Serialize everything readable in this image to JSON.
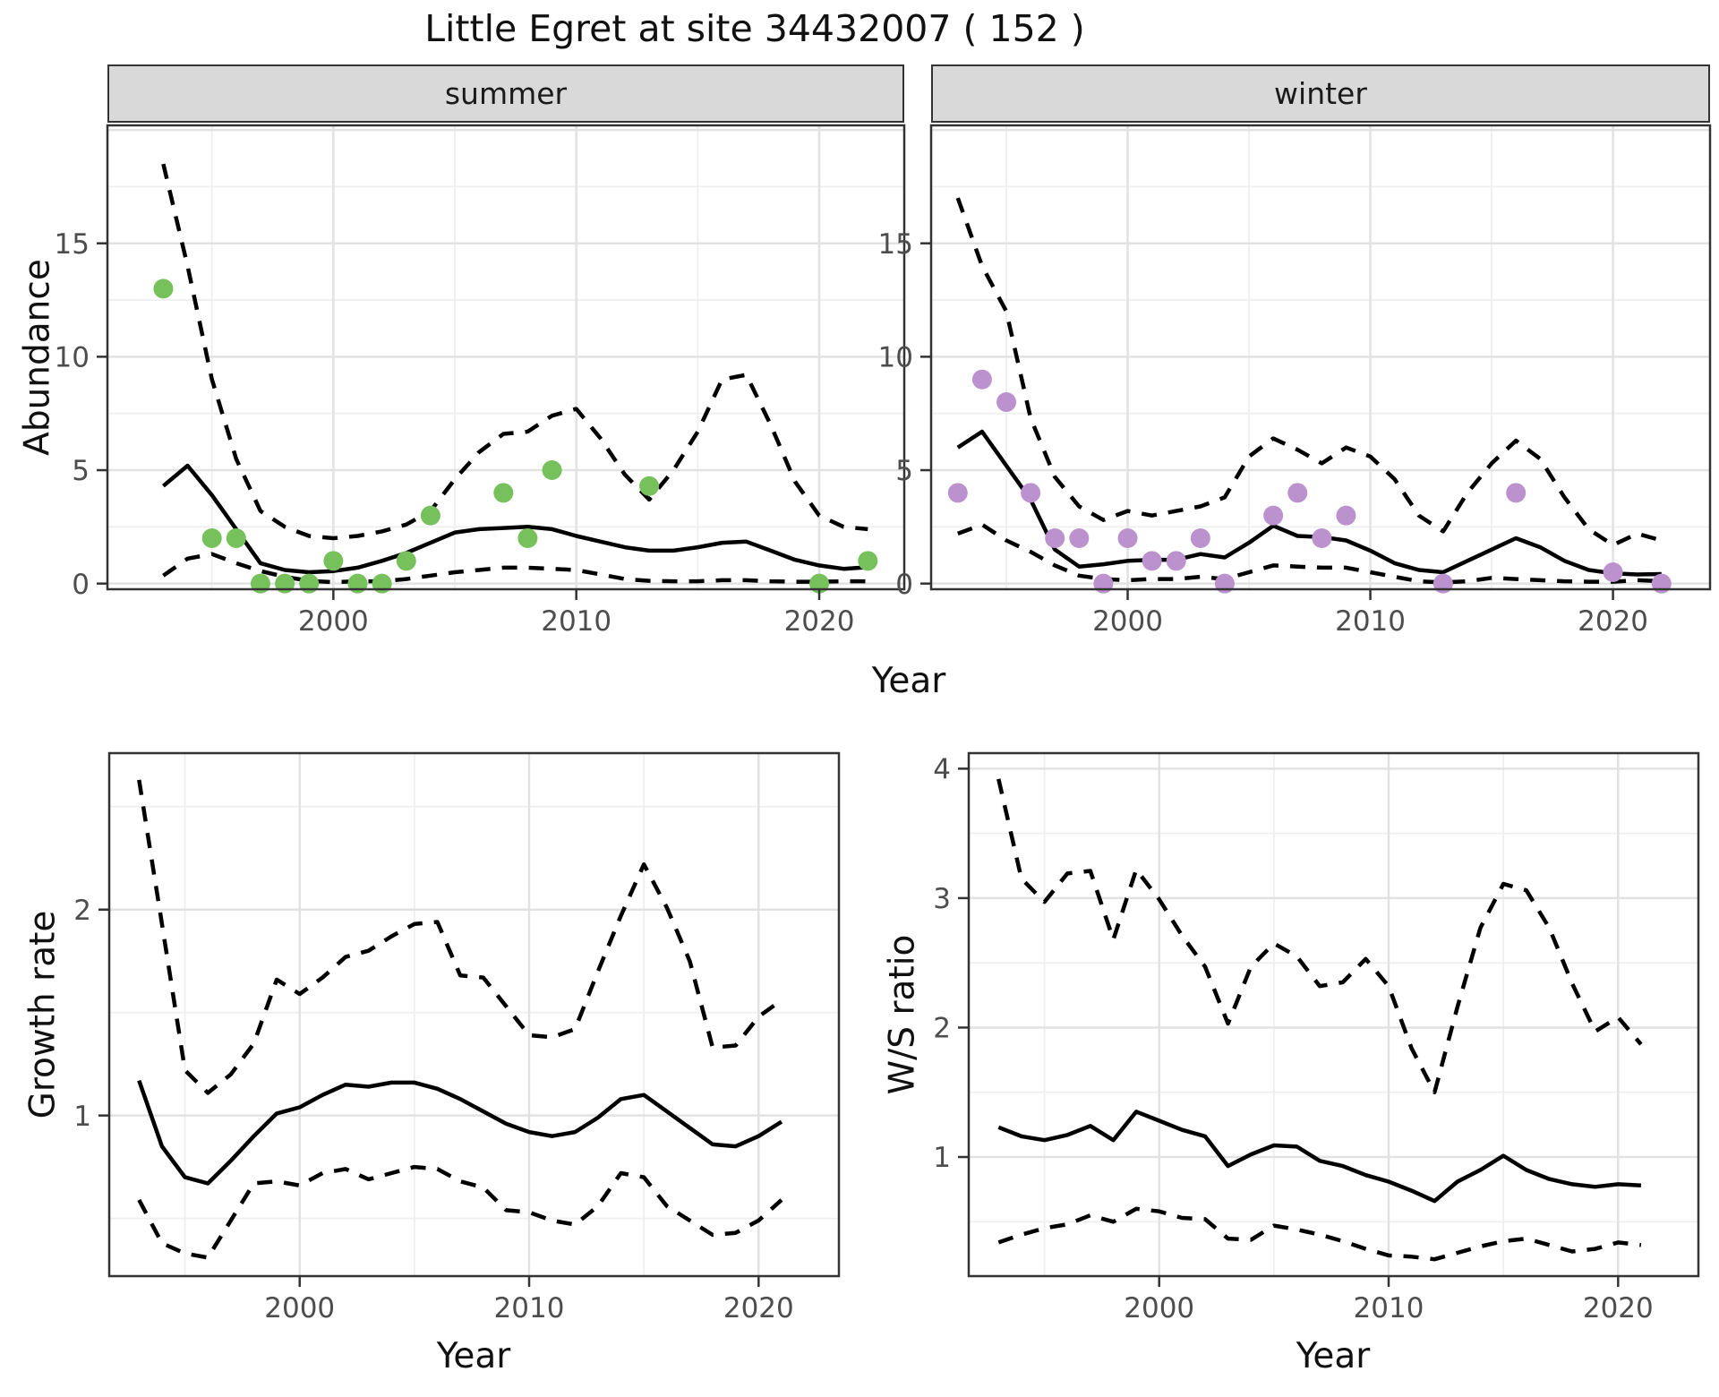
{
  "title": "Little Egret at site 34432007 ( 152 )",
  "axis_titles": {
    "abundance": "Abundance",
    "year_top": "Year",
    "growth": "Growth rate",
    "year_growth": "Year",
    "ws": "W/S ratio",
    "year_ws": "Year"
  },
  "facets": {
    "summer": "summer",
    "winter": "winter"
  },
  "colors": {
    "summer_points": "#77C15C",
    "winter_points": "#BB92CD",
    "line": "#000000",
    "strip_bg": "#D9D9D9",
    "panel_border": "#333333",
    "grid_major": "#E2E2E2",
    "grid_minor": "#EFEFEF",
    "tick_text": "#4D4D4D",
    "tick_mark": "#333333"
  },
  "chart_data": [
    {
      "id": "summer",
      "type": "line",
      "facet_label": "summer",
      "ylabel": "Abundance",
      "xlabel": "Year",
      "xlim": [
        1990.7,
        2023.5
      ],
      "ylim": [
        -0.25,
        20.2
      ],
      "x_ticks": [
        2000,
        2010,
        2020
      ],
      "x_minor": [
        1995,
        2005,
        2015
      ],
      "y_ticks": [
        0,
        5,
        10,
        15
      ],
      "y_extra_gridlines": [
        20
      ],
      "y_minor": [
        2.5,
        7.5,
        12.5,
        17.5
      ],
      "grid": true,
      "legend": "none",
      "years": [
        1993,
        1994,
        1995,
        1996,
        1997,
        1998,
        1999,
        2000,
        2001,
        2002,
        2003,
        2004,
        2005,
        2006,
        2007,
        2008,
        2009,
        2010,
        2011,
        2012,
        2013,
        2014,
        2015,
        2016,
        2017,
        2018,
        2019,
        2020,
        2021,
        2022
      ],
      "series": [
        {
          "name": "mean",
          "style": "solid",
          "values": [
            4.3,
            5.2,
            3.9,
            2.4,
            0.9,
            0.6,
            0.5,
            0.55,
            0.7,
            1.0,
            1.35,
            1.8,
            2.25,
            2.4,
            2.45,
            2.5,
            2.4,
            2.1,
            1.85,
            1.6,
            1.45,
            1.45,
            1.6,
            1.8,
            1.85,
            1.45,
            1.05,
            0.8,
            0.65,
            0.72
          ]
        },
        {
          "name": "upper_ci",
          "style": "dashed",
          "values": [
            18.5,
            14.0,
            9.0,
            5.5,
            3.2,
            2.5,
            2.1,
            2.0,
            2.1,
            2.3,
            2.6,
            3.2,
            4.6,
            5.8,
            6.6,
            6.7,
            7.4,
            7.7,
            6.4,
            4.8,
            3.7,
            5.0,
            6.7,
            9.0,
            9.2,
            7.0,
            4.5,
            3.0,
            2.5,
            2.4
          ]
        },
        {
          "name": "lower_ci",
          "style": "dashed",
          "values": [
            0.35,
            1.1,
            1.3,
            0.9,
            0.55,
            0.3,
            0.12,
            0.06,
            0.1,
            0.1,
            0.2,
            0.35,
            0.5,
            0.6,
            0.7,
            0.7,
            0.65,
            0.6,
            0.4,
            0.2,
            0.12,
            0.1,
            0.1,
            0.15,
            0.15,
            0.1,
            0.08,
            0.08,
            0.1,
            0.1
          ]
        }
      ],
      "points": {
        "name": "observed-summer",
        "color": "#77C15C",
        "data": [
          [
            1993,
            13
          ],
          [
            1995,
            2
          ],
          [
            1996,
            2
          ],
          [
            1997,
            0
          ],
          [
            1998,
            0
          ],
          [
            1999,
            0
          ],
          [
            2000,
            1
          ],
          [
            2001,
            0
          ],
          [
            2002,
            0
          ],
          [
            2003,
            1
          ],
          [
            2004,
            3
          ],
          [
            2007,
            4
          ],
          [
            2008,
            2
          ],
          [
            2009,
            5
          ],
          [
            2013,
            4.3
          ],
          [
            2020,
            0
          ],
          [
            2022,
            1
          ]
        ]
      }
    },
    {
      "id": "winter",
      "type": "line",
      "facet_label": "winter",
      "ylabel": "Abundance",
      "xlabel": "Year",
      "xlim": [
        1991.9,
        2024.0
      ],
      "ylim": [
        -0.25,
        20.2
      ],
      "x_ticks": [
        2000,
        2010,
        2020
      ],
      "x_minor": [
        1995,
        2005,
        2015
      ],
      "y_ticks": [
        0,
        5,
        10,
        15
      ],
      "y_extra_gridlines": [
        20
      ],
      "y_minor": [
        2.5,
        7.5,
        12.5,
        17.5
      ],
      "grid": true,
      "legend": "none",
      "years": [
        1993,
        1994,
        1995,
        1996,
        1997,
        1998,
        1999,
        2000,
        2001,
        2002,
        2003,
        2004,
        2005,
        2006,
        2007,
        2008,
        2009,
        2010,
        2011,
        2012,
        2013,
        2014,
        2015,
        2016,
        2017,
        2018,
        2019,
        2020,
        2021,
        2022
      ],
      "series": [
        {
          "name": "mean",
          "style": "solid",
          "values": [
            6.0,
            6.7,
            5.2,
            3.7,
            1.5,
            0.75,
            0.85,
            1.0,
            1.05,
            1.05,
            1.3,
            1.15,
            1.8,
            2.55,
            2.1,
            2.05,
            1.9,
            1.45,
            0.9,
            0.6,
            0.5,
            1.0,
            1.5,
            2.0,
            1.6,
            1.0,
            0.6,
            0.45,
            0.4,
            0.42
          ]
        },
        {
          "name": "upper_ci",
          "style": "dashed",
          "values": [
            17.0,
            14.0,
            12.0,
            7.3,
            4.7,
            3.4,
            2.8,
            3.2,
            3.0,
            3.2,
            3.4,
            3.8,
            5.6,
            6.4,
            5.9,
            5.3,
            6.0,
            5.6,
            4.6,
            3.0,
            2.3,
            4.0,
            5.3,
            6.3,
            5.5,
            3.8,
            2.4,
            1.7,
            2.2,
            1.9
          ]
        },
        {
          "name": "lower_ci",
          "style": "dashed",
          "values": [
            2.2,
            2.6,
            1.9,
            1.4,
            0.8,
            0.35,
            0.2,
            0.15,
            0.2,
            0.2,
            0.3,
            0.2,
            0.5,
            0.8,
            0.75,
            0.7,
            0.7,
            0.5,
            0.3,
            0.1,
            0.05,
            0.1,
            0.25,
            0.2,
            0.15,
            0.1,
            0.08,
            0.08,
            0.15,
            0.1
          ]
        }
      ],
      "points": {
        "name": "observed-winter",
        "color": "#BB92CD",
        "data": [
          [
            1993,
            4
          ],
          [
            1994,
            9
          ],
          [
            1995,
            8
          ],
          [
            1996,
            4
          ],
          [
            1997,
            2
          ],
          [
            1998,
            2
          ],
          [
            1999,
            0
          ],
          [
            2000,
            2
          ],
          [
            2001,
            1
          ],
          [
            2002,
            1
          ],
          [
            2003,
            2
          ],
          [
            2004,
            0
          ],
          [
            2006,
            3
          ],
          [
            2007,
            4
          ],
          [
            2008,
            2
          ],
          [
            2009,
            3
          ],
          [
            2013,
            0
          ],
          [
            2016,
            4
          ],
          [
            2020,
            0.5
          ],
          [
            2022,
            0
          ]
        ]
      }
    },
    {
      "id": "growth",
      "type": "line",
      "facet_label": "",
      "ylabel": "Growth rate",
      "xlabel": "Year",
      "xlim": [
        1991.7,
        2023.5
      ],
      "ylim": [
        0.22,
        2.76
      ],
      "x_ticks": [
        2000,
        2010,
        2020
      ],
      "x_minor": [
        1995,
        2005,
        2015
      ],
      "y_ticks": [
        1,
        2
      ],
      "y_extra_gridlines": [],
      "y_minor": [
        0.5,
        1.5,
        2.5
      ],
      "grid": true,
      "legend": "none",
      "years": [
        1993,
        1994,
        1995,
        1996,
        1997,
        1998,
        1999,
        2000,
        2001,
        2002,
        2003,
        2004,
        2005,
        2006,
        2007,
        2008,
        2009,
        2010,
        2011,
        2012,
        2013,
        2014,
        2015,
        2016,
        2017,
        2018,
        2019,
        2020,
        2021
      ],
      "series": [
        {
          "name": "mean",
          "style": "solid",
          "values": [
            1.17,
            0.85,
            0.7,
            0.67,
            0.78,
            0.9,
            1.01,
            1.04,
            1.1,
            1.15,
            1.14,
            1.16,
            1.16,
            1.13,
            1.08,
            1.02,
            0.96,
            0.92,
            0.9,
            0.92,
            0.99,
            1.08,
            1.1,
            1.02,
            0.94,
            0.86,
            0.85,
            0.9,
            0.97
          ]
        },
        {
          "name": "upper_ci",
          "style": "dashed",
          "values": [
            2.63,
            1.93,
            1.22,
            1.11,
            1.2,
            1.35,
            1.66,
            1.59,
            1.67,
            1.77,
            1.8,
            1.87,
            1.93,
            1.94,
            1.68,
            1.67,
            1.53,
            1.39,
            1.38,
            1.42,
            1.7,
            1.97,
            2.22,
            2.01,
            1.75,
            1.33,
            1.34,
            1.48,
            1.56
          ]
        },
        {
          "name": "lower_ci",
          "style": "dashed",
          "values": [
            0.59,
            0.38,
            0.33,
            0.31,
            0.49,
            0.67,
            0.68,
            0.66,
            0.72,
            0.74,
            0.69,
            0.72,
            0.75,
            0.74,
            0.68,
            0.65,
            0.54,
            0.53,
            0.49,
            0.47,
            0.56,
            0.72,
            0.7,
            0.56,
            0.49,
            0.42,
            0.43,
            0.49,
            0.59
          ]
        }
      ],
      "points": null
    },
    {
      "id": "ws",
      "type": "line",
      "facet_label": "",
      "ylabel": "W/S ratio",
      "xlabel": "Year",
      "xlim": [
        1991.7,
        2023.5
      ],
      "ylim": [
        0.08,
        4.12
      ],
      "x_ticks": [
        2000,
        2010,
        2020
      ],
      "x_minor": [
        1995,
        2005,
        2015
      ],
      "y_ticks": [
        1,
        2,
        3,
        4
      ],
      "y_extra_gridlines": [],
      "y_minor": [
        0.5,
        1.5,
        2.5,
        3.5
      ],
      "grid": true,
      "legend": "none",
      "years": [
        1993,
        1994,
        1995,
        1996,
        1997,
        1998,
        1999,
        2000,
        2001,
        2002,
        2003,
        2004,
        2005,
        2006,
        2007,
        2008,
        2009,
        2010,
        2011,
        2012,
        2013,
        2014,
        2015,
        2016,
        2017,
        2018,
        2019,
        2020,
        2021
      ],
      "series": [
        {
          "name": "mean",
          "style": "solid",
          "values": [
            1.23,
            1.16,
            1.13,
            1.17,
            1.24,
            1.13,
            1.35,
            1.28,
            1.21,
            1.16,
            0.93,
            1.02,
            1.09,
            1.08,
            0.97,
            0.93,
            0.86,
            0.81,
            0.74,
            0.66,
            0.81,
            0.9,
            1.01,
            0.9,
            0.83,
            0.79,
            0.77,
            0.79,
            0.78
          ]
        },
        {
          "name": "upper_ci",
          "style": "dashed",
          "values": [
            3.92,
            3.15,
            2.97,
            3.19,
            3.21,
            2.68,
            3.22,
            2.99,
            2.71,
            2.47,
            2.03,
            2.47,
            2.65,
            2.55,
            2.32,
            2.35,
            2.53,
            2.32,
            1.84,
            1.5,
            2.16,
            2.77,
            3.11,
            3.06,
            2.77,
            2.34,
            1.97,
            2.08,
            1.87
          ]
        },
        {
          "name": "lower_ci",
          "style": "dashed",
          "values": [
            0.34,
            0.4,
            0.45,
            0.48,
            0.55,
            0.5,
            0.6,
            0.58,
            0.53,
            0.52,
            0.37,
            0.36,
            0.47,
            0.44,
            0.4,
            0.35,
            0.29,
            0.24,
            0.23,
            0.21,
            0.26,
            0.31,
            0.35,
            0.37,
            0.32,
            0.27,
            0.29,
            0.34,
            0.32
          ]
        }
      ],
      "points": null
    }
  ]
}
